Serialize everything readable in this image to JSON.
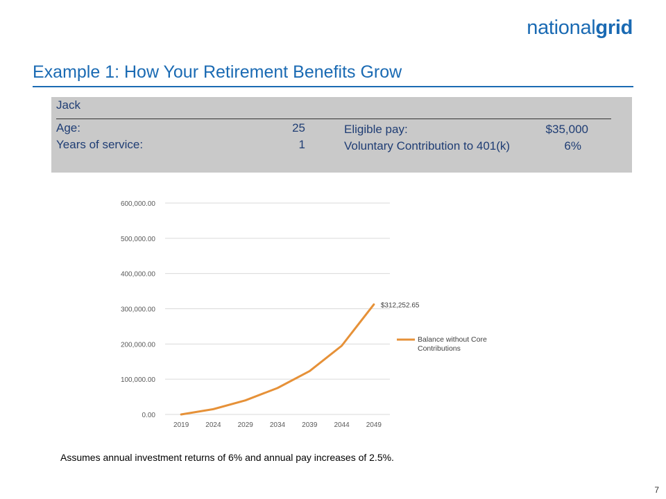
{
  "logo": {
    "part1": "national",
    "part2": "grid"
  },
  "slide_title": "Example 1: How Your Retirement Benefits Grow",
  "profile": {
    "name": "Jack",
    "age_label": "Age:",
    "age_value": "25",
    "service_label": "Years of service:",
    "service_value": "1",
    "pay_label": "Eligible pay:",
    "pay_value": "$35,000",
    "contrib_label": "Voluntary Contribution to 401(k)",
    "contrib_value": "6%"
  },
  "chart_data": {
    "type": "line",
    "title": "",
    "xlabel": "",
    "ylabel": "",
    "categories": [
      "2019",
      "2024",
      "2029",
      "2034",
      "2039",
      "2044",
      "2049"
    ],
    "series": [
      {
        "name": "Balance without Core Contributions",
        "color": "#e69138",
        "values": [
          0,
          15000,
          40000,
          75000,
          123000,
          195000,
          312252.65
        ]
      }
    ],
    "ylim": [
      0,
      600000
    ],
    "yticks": [
      "0.00",
      "100,000.00",
      "200,000.00",
      "300,000.00",
      "400,000.00",
      "500,000.00",
      "600,000.00"
    ],
    "grid": true,
    "legend": "right",
    "annotation": "$312,252.65"
  },
  "footnote": "Assumes annual investment returns of 6% and annual pay increases of 2.5%.",
  "page_number": "7"
}
